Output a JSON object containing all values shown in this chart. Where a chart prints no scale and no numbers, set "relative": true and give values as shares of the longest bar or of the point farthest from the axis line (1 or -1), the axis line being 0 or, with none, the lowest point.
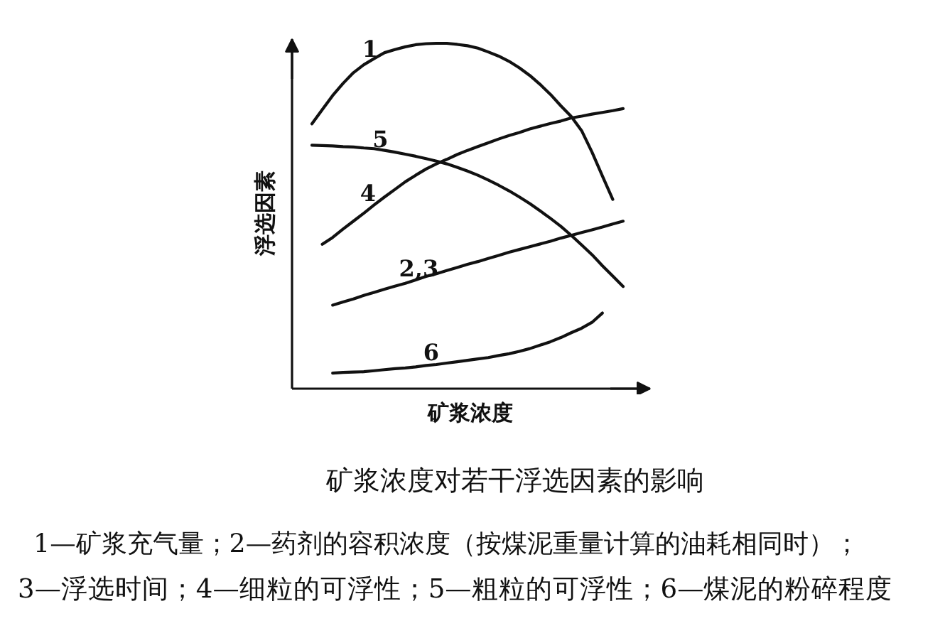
{
  "chart_data": {
    "type": "line",
    "relative": true,
    "title": "矿浆浓度对若干浮选因素的影响",
    "xlabel": "矿浆浓度",
    "ylabel": "浮选因素",
    "annotations": [
      "1—矿浆充气量；2—药剂的容积浓度（按煤泥重量计算的油耗相同时）；",
      "3—浮选时间；4—细粒的可浮性；5—粗粒的可浮性；6—煤泥的粉碎程度"
    ],
    "categories": [
      null,
      null,
      null,
      null,
      null,
      null,
      null,
      null,
      null,
      null,
      null,
      null,
      null,
      null,
      null,
      null,
      null,
      null,
      null,
      null,
      null,
      null,
      null,
      null,
      null,
      null,
      null,
      null,
      null,
      null,
      null
    ],
    "series": [
      {
        "name": "1",
        "color": "#111111",
        "values": [
          0.767,
          0.808,
          0.849,
          0.884,
          0.915,
          0.938,
          0.956,
          0.973,
          0.982,
          0.99,
          0.996,
          0.999,
          1.0,
          1.0,
          0.997,
          0.993,
          0.986,
          0.975,
          0.963,
          0.948,
          0.929,
          0.907,
          0.881,
          0.852,
          0.819,
          0.788,
          0.747,
          0.685,
          0.616,
          0.548,
          null
        ]
      },
      {
        "name": "2,3",
        "color": "#111111",
        "values": [
          null,
          null,
          0.242,
          0.251,
          0.26,
          0.27,
          0.279,
          0.288,
          0.297,
          0.305,
          0.315,
          0.325,
          0.333,
          0.342,
          0.351,
          0.36,
          0.368,
          0.377,
          0.386,
          0.395,
          0.403,
          0.411,
          0.419,
          0.427,
          0.436,
          0.444,
          0.452,
          0.46,
          0.468,
          0.477,
          0.485
        ]
      },
      {
        "name": "4",
        "color": "#111111",
        "values": [
          null,
          0.418,
          0.438,
          0.462,
          0.485,
          0.508,
          0.532,
          0.555,
          0.577,
          0.599,
          0.618,
          0.636,
          0.651,
          0.664,
          0.678,
          0.69,
          0.701,
          0.712,
          0.723,
          0.733,
          0.742,
          0.752,
          0.76,
          0.768,
          0.775,
          0.784,
          0.789,
          0.795,
          0.8,
          0.805,
          0.811
        ]
      },
      {
        "name": "5",
        "color": "#111111",
        "values": [
          0.705,
          0.704,
          0.703,
          0.701,
          0.7,
          0.697,
          0.695,
          0.69,
          0.685,
          0.679,
          0.673,
          0.666,
          0.659,
          0.651,
          0.641,
          0.63,
          0.618,
          0.604,
          0.589,
          0.573,
          0.555,
          0.536,
          0.515,
          0.493,
          0.47,
          0.444,
          0.416,
          0.388,
          0.356,
          0.326,
          0.296
        ]
      },
      {
        "name": "6",
        "color": "#111111",
        "values": [
          null,
          null,
          0.045,
          0.047,
          0.048,
          0.049,
          0.052,
          0.055,
          0.058,
          0.06,
          0.063,
          0.067,
          0.07,
          0.074,
          0.078,
          0.082,
          0.086,
          0.09,
          0.096,
          0.101,
          0.108,
          0.116,
          0.126,
          0.136,
          0.148,
          0.162,
          0.175,
          0.192,
          0.219,
          null,
          null
        ]
      }
    ]
  }
}
